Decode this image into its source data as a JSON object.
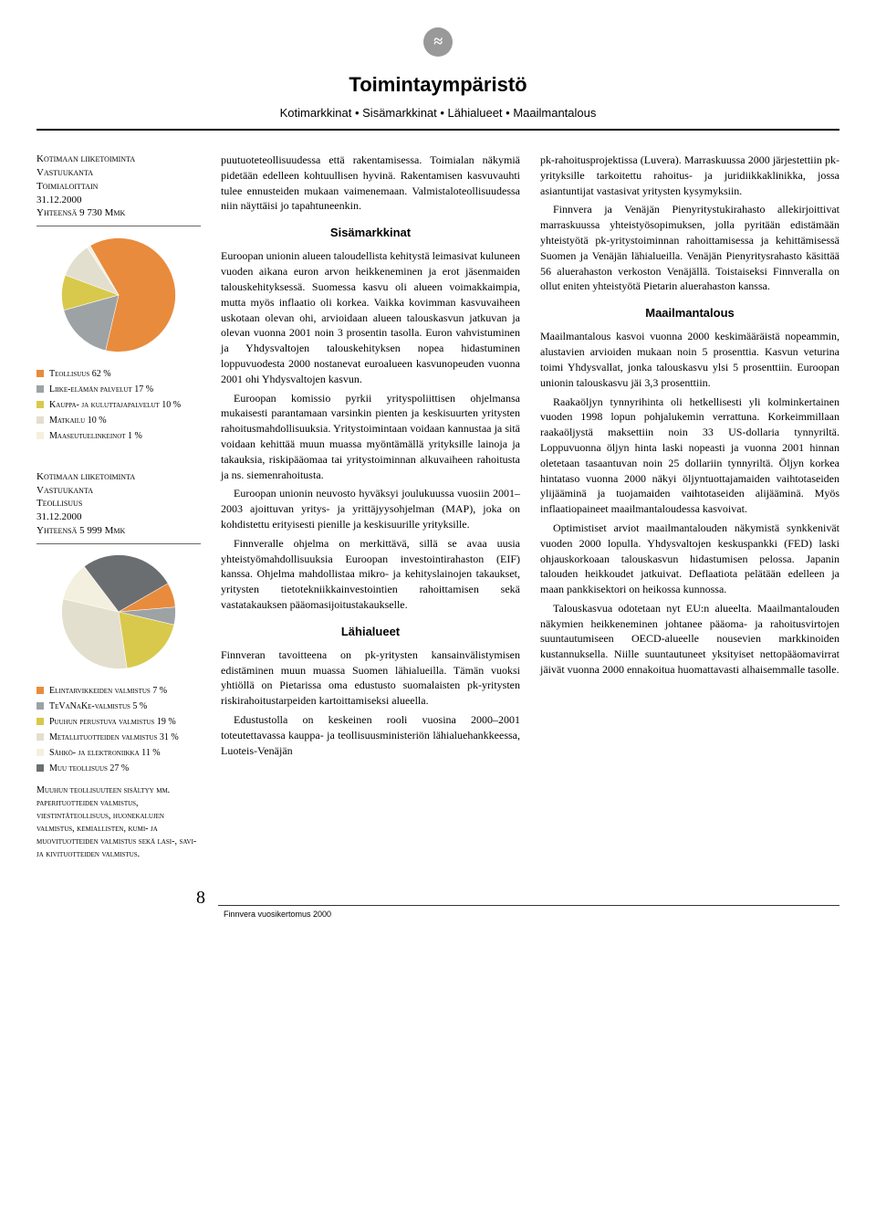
{
  "header": {
    "logo_glyph": "≈",
    "title": "Toimintaympäristö",
    "subtitle": "Kotimarkkinat • Sisämarkkinat • Lähialueet • Maailmantalous"
  },
  "chart1": {
    "type": "pie",
    "heading_l1": "Kotimaan liiketoiminta",
    "heading_l2": "Vastuukanta",
    "heading_l3": "Toimialoittain",
    "heading_l4": "31.12.2000",
    "heading_l5": "Yhteensä 9 730 Mmk",
    "slices": [
      {
        "label": "Teollisuus 62 %",
        "value": 62,
        "color": "#e98b3c"
      },
      {
        "label": "Liike-elämän palvelut 17 %",
        "value": 17,
        "color": "#9da2a5"
      },
      {
        "label": "Kauppa- ja kuluttajapalvelut 10 %",
        "value": 10,
        "color": "#d8c94c"
      },
      {
        "label": "Matkailu 10 %",
        "value": 10,
        "color": "#e3dfce"
      },
      {
        "label": "Maaseutuelinkeinot 1 %",
        "value": 1,
        "color": "#f4f0df"
      }
    ],
    "start_angle_deg": -120
  },
  "chart2": {
    "type": "pie",
    "heading_l1": "Kotimaan liiketoiminta",
    "heading_l2": "Vastuukanta",
    "heading_l3": "Teollisuus",
    "heading_l4": "31.12.2000",
    "heading_l5": "Yhteensä 5 999 Mmk",
    "slices": [
      {
        "label": "Elintarvikkeiden valmistus 7 %",
        "value": 7,
        "color": "#e98b3c"
      },
      {
        "label": "TeVaNaKe-valmistus 5 %",
        "value": 5,
        "color": "#9da2a5"
      },
      {
        "label": "Puuhun perustuva valmistus 19 %",
        "value": 19,
        "color": "#d8c94c"
      },
      {
        "label": "Metallituotteiden valmistus 31 %",
        "value": 31,
        "color": "#e3dfce"
      },
      {
        "label": "Sähkö- ja elektroniikka 11 %",
        "value": 11,
        "color": "#f4f0df"
      },
      {
        "label": "Muu teollisuus 27 %",
        "value": 27,
        "color": "#6b6e71"
      }
    ],
    "start_angle_deg": -30,
    "footnote": "Muuhun teollisuuteen sisältyy mm. paperituotteiden valmistus, viestintäteollisuus, huonekalujen valmistus, kemiallisten, kumi- ja muovituotteiden valmistus sekä lasi-, savi- ja kivituotteiden valmistus."
  },
  "body": {
    "c1_p1": "puutuoteteollisuudessa että rakentamisessa. Toimialan näkymiä pidetään edelleen kohtuullisen hyvinä. Rakentamisen kasvuvauhti tulee ennusteiden mukaan vaimenemaan. Valmistaloteollisuudessa niin näyttäisi jo tapahtuneenkin.",
    "h_sisa": "Sisämarkkinat",
    "c1_p2": "Euroopan unionin alueen taloudellista kehitystä leimasivat kuluneen vuoden aikana euron arvon heikkeneminen ja erot jäsenmaiden talouskehityksessä. Suomessa kasvu oli alueen voimakkaimpia, mutta myös inflaatio oli korkea. Vaikka kovimman kasvuvaiheen uskotaan olevan ohi, arvioidaan alueen talouskasvun jatkuvan ja olevan vuonna 2001 noin 3 prosentin tasolla. Euron vahvistuminen ja Yhdysvaltojen talouskehityksen nopea hidastuminen loppuvuodesta 2000 nostanevat euroalueen kasvunopeuden vuonna 2001 ohi Yhdysvaltojen kasvun.",
    "c1_p3": "Euroopan komissio pyrkii yrityspoliittisen ohjelmansa mukaisesti parantamaan varsinkin pienten ja keskisuurten yritysten rahoitusmahdollisuuksia. Yritystoimintaan voidaan kannustaa ja sitä voidaan kehittää muun muassa myöntämällä yrityksille lainoja ja takauksia, riskipääomaa tai yritystoiminnan alkuvaiheen rahoitusta ja ns. siemenrahoitusta.",
    "c1_p4": "Euroopan unionin neuvosto hyväksyi joulukuussa vuosiin 2001–2003 ajoittuvan yritys- ja yrittäjyysohjelman (MAP), joka on kohdistettu erityisesti pienille ja keskisuurille yrityksille.",
    "c1_p5": "Finnveralle ohjelma on merkittävä, sillä se avaa uusia yhteistyömahdollisuuksia Euroopan investointirahaston (EIF) kanssa. Ohjelma mahdollistaa mikro- ja kehityslainojen takaukset, yritysten tietotekniikkainvestointien rahoittamisen sekä vastatakauksen pääomasijoitustakaukselle.",
    "h_lahi": "Lähialueet",
    "c1_p6": "Finnveran tavoitteena on pk-yritysten kansainvälistymisen edistäminen muun muassa Suomen lähialueilla. Tämän vuoksi yhtiöllä on Pietarissa oma edustusto suomalaisten pk-yritysten riskirahoitustarpeiden kartoittamiseksi alueella.",
    "c1_p7": "Edustustolla on keskeinen rooli vuosina 2000–2001 toteutettavassa kauppa- ja teollisuusministeriön lähialuehankkeessa, Luoteis-Venäjän",
    "c2_p1": "pk-rahoitusprojektissa (Luvera). Marraskuussa 2000 järjestettiin pk-yrityksille tarkoitettu rahoitus- ja juridiikkaklinikka, jossa asiantuntijat vastasivat yritysten kysymyksiin.",
    "c2_p2": "Finnvera ja Venäjän Pienyritystukirahasto allekirjoittivat marraskuussa yhteistyösopimuksen, jolla pyritään edistämään yhteistyötä pk-yritystoiminnan rahoittamisessa ja kehittämisessä Suomen ja Venäjän lähialueilla. Venäjän Pienyritysrahasto käsittää 56 aluerahaston verkoston Venäjällä. Toistaiseksi Finnveralla on ollut eniten yhteistyötä Pietarin aluerahaston kanssa.",
    "h_maailma": "Maailmantalous",
    "c2_p3": "Maailmantalous kasvoi vuonna 2000 keskimääräistä nopeammin, alustavien arvioiden mukaan noin 5 prosenttia. Kasvun veturina toimi Yhdysvallat, jonka talouskasvu ylsi 5 prosenttiin. Euroopan unionin talouskasvu jäi 3,3 prosenttiin.",
    "c2_p4": "Raakaöljyn tynnyrihinta oli hetkellisesti yli kolminkertainen vuoden 1998 lopun pohjalukemin verrattuna. Korkeimmillaan raakaöljystä maksettiin noin 33 US-dollaria tynnyriltä. Loppuvuonna öljyn hinta laski nopeasti ja vuonna 2001 hinnan oletetaan tasaantuvan noin 25 dollariin tynnyriltä. Öljyn korkea hintataso vuonna 2000 näkyi öljyntuottajamaiden vaihtotaseiden ylijääminä ja tuojamaiden vaihtotaseiden alijääminä. Myös inflaatiopaineet maailmantaloudessa kasvoivat.",
    "c2_p5": "Optimistiset arviot maailmantalouden näkymistä synkkenivät vuoden 2000 lopulla. Yhdysvaltojen keskuspankki (FED) laski ohjauskorkoaan talouskasvun hidastumisen pelossa. Japanin talouden heikkoudet jatkuivat. Deflaatiota pelätään edelleen ja maan pankkisektori on heikossa kunnossa.",
    "c2_p6": "Talouskasvua odotetaan nyt EU:n alueelta. Maailmantalouden näkymien heikkeneminen johtanee pääoma- ja rahoitusvirtojen suuntautumiseen OECD-alueelle nousevien markkinoiden kustannuksella. Niille suuntautuneet yksityiset nettopääomavirrat jäivät vuonna 2000 ennakoitua huomattavasti alhaisemmalle tasolle."
  },
  "footer": {
    "page_number": "8",
    "text": "Finnvera vuosikertomus 2000"
  }
}
